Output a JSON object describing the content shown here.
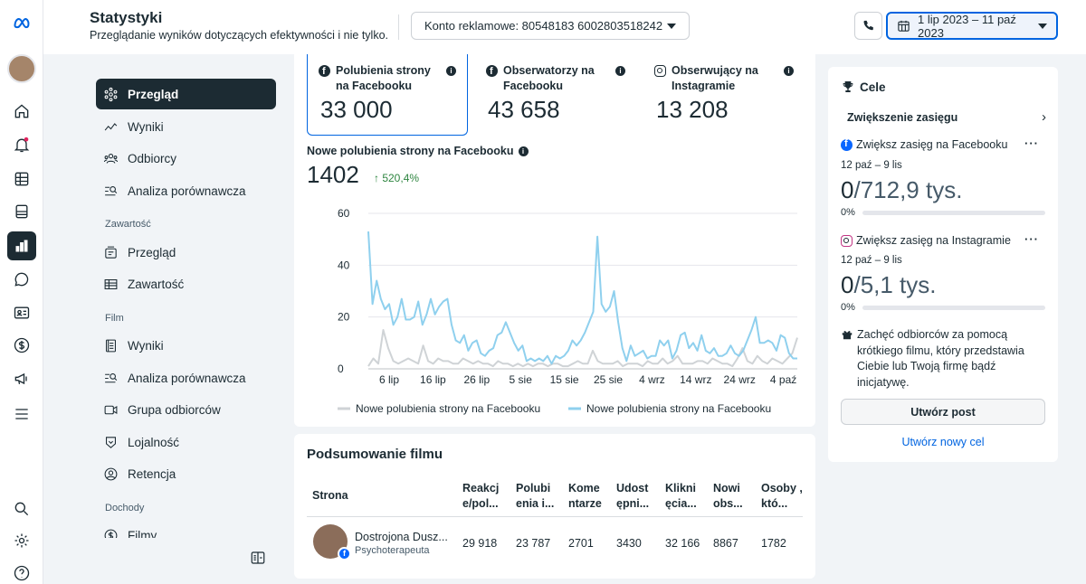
{
  "header": {
    "title": "Statystyki",
    "subtitle": "Przeglądanie wyników dotyczących efektywności i nie tylko.",
    "account": "Konto reklamowe: 80548183 6002803518242",
    "date_range": "1 lip 2023 – 11 paź 2023"
  },
  "nav": {
    "overview": "Przegląd",
    "results": "Wyniki",
    "audience": "Odbiorcy",
    "benchmark": "Analiza porównawcza",
    "content_head": "Zawartość",
    "content_overview": "Przegląd",
    "content": "Zawartość",
    "film_head": "Film",
    "film_results": "Wyniki",
    "film_benchmark": "Analiza porównawcza",
    "film_audience": "Grupa odbiorców",
    "loyalty": "Lojalność",
    "retention": "Retencja",
    "income_head": "Dochody",
    "films": "Filmy"
  },
  "metrics": [
    {
      "label": "Polubienia strony na Facebooku",
      "value": "33 000"
    },
    {
      "label": "Obserwatorzy na Facebooku",
      "value": "43 658"
    },
    {
      "label": "Obserwujący na Instagramie",
      "value": "13 208"
    }
  ],
  "chart_panel": {
    "title": "Nowe polubienia strony na Facebooku",
    "value": "1402",
    "change": "↑ 520,4%"
  },
  "chart_data": {
    "type": "line",
    "title": "Nowe polubienia strony na Facebooku",
    "ylim": [
      0,
      60
    ],
    "yticks": [
      0,
      20,
      40,
      60
    ],
    "xticks": [
      "6 lip",
      "16 lip",
      "26 lip",
      "5 sie",
      "15 sie",
      "25 sie",
      "4 wrz",
      "14 wrz",
      "24 wrz",
      "4 paź"
    ],
    "series": [
      {
        "name": "Nowe polubienia strony na Facebooku",
        "color": "#cfd3d6",
        "values": [
          1,
          4,
          2,
          15,
          8,
          3,
          2,
          3,
          4,
          3,
          2,
          9,
          3,
          2,
          4,
          3,
          3,
          2,
          2,
          4,
          3,
          2,
          3,
          2,
          2,
          1,
          3,
          2,
          2,
          1,
          2,
          1,
          2,
          1,
          2,
          2,
          1,
          2,
          2,
          1,
          1,
          2,
          3,
          2,
          2,
          7,
          3,
          2,
          2,
          2,
          3,
          1,
          2,
          2,
          2,
          1,
          3,
          2,
          2,
          4,
          2,
          3,
          5,
          2,
          2,
          2,
          3,
          3,
          2,
          4,
          3,
          2,
          2,
          1,
          4,
          8,
          3,
          2,
          5,
          3,
          2,
          4,
          3,
          2,
          4,
          6,
          12
        ]
      },
      {
        "name": "Nowe polubienia strony na Facebooku",
        "color": "#8fd0ee",
        "values": [
          53,
          25,
          34,
          27,
          23,
          25,
          17,
          20,
          27,
          19,
          19,
          20,
          26,
          17,
          21,
          27,
          21,
          24,
          26,
          27,
          17,
          11,
          10,
          13,
          7,
          10,
          11,
          6,
          5,
          7,
          8,
          13,
          14,
          18,
          14,
          10,
          7,
          9,
          3,
          4,
          3,
          4,
          3,
          5,
          2,
          5,
          4,
          5,
          7,
          11,
          9,
          11,
          14,
          18,
          22,
          51,
          25,
          22,
          24,
          30,
          18,
          8,
          3,
          9,
          5,
          6,
          7,
          4,
          5,
          5,
          11,
          9,
          11,
          4,
          7,
          13,
          14,
          8,
          10,
          7,
          13,
          7,
          6,
          8,
          5,
          5,
          6,
          9,
          6,
          5,
          7,
          11,
          15,
          20,
          10,
          10,
          11,
          10,
          7,
          13,
          12,
          6,
          4,
          4
        ]
      }
    ],
    "legend": [
      "Nowe polubienia strony na Facebooku",
      "Nowe polubienia strony na Facebooku"
    ],
    "legend_position": "bottom"
  },
  "film_summary": {
    "title": "Podsumowanie filmu",
    "columns": [
      "Strona",
      "Reakcj e/pol...",
      "Polubi enia i...",
      "Kome ntarze",
      "Udost ępni...",
      "Klikni ęcia...",
      "Nowi obs...",
      "Osoby , któ..."
    ],
    "row": {
      "name": "Dostrojona Dusz...",
      "sub": "Psychoterapeuta",
      "values": [
        "29 918",
        "23 787",
        "2701",
        "3430",
        "32 166",
        "8867",
        "1782"
      ]
    }
  },
  "goals": {
    "title": "Cele",
    "section": "Zwiększenie zasięgu",
    "fb": {
      "label": "Zwiększ zasięg na Facebooku",
      "dates": "12 paź – 9 lis",
      "value": "0",
      "target": "/712,9 tys.",
      "percent": "0%",
      "progress": 0
    },
    "ig": {
      "label": "Zwiększ zasięg na Instagramie",
      "dates": "12 paź – 9 lis",
      "value": "0",
      "target": "/5,1 tys.",
      "percent": "0%",
      "progress": 0
    },
    "tip": "Zachęć odbiorców za pomocą krótkiego filmu, który przedstawia Ciebie lub Twoją firmę bądź inicjatywę.",
    "create_post": "Utwórz post",
    "new_goal": "Utwórz nowy cel"
  }
}
